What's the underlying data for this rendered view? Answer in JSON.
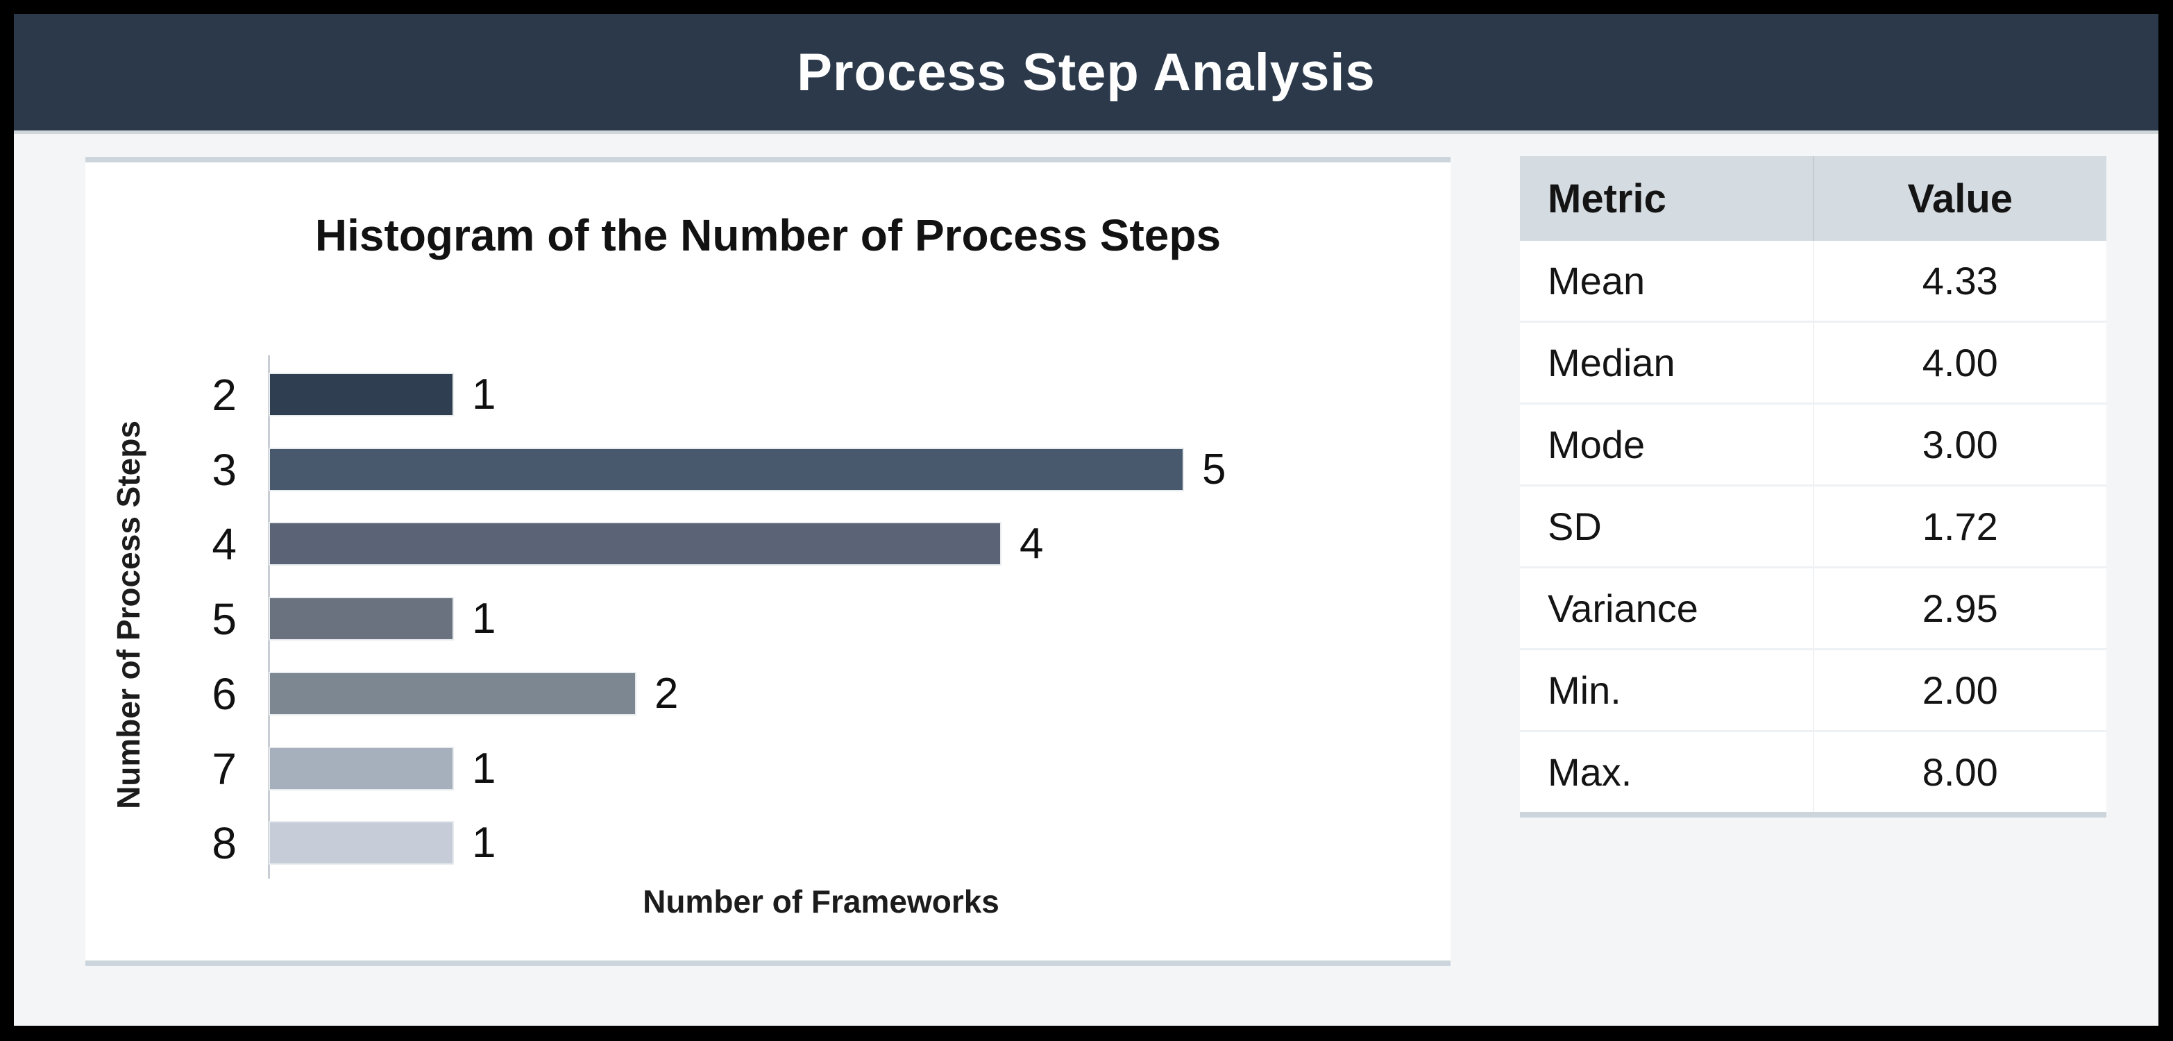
{
  "header": {
    "title": "Process Step Analysis"
  },
  "chart_data": {
    "type": "bar",
    "orientation": "horizontal",
    "title": "Histogram of the Number of Process Steps",
    "categories": [
      "2",
      "3",
      "4",
      "5",
      "6",
      "7",
      "8"
    ],
    "values": [
      1,
      5,
      4,
      1,
      2,
      1,
      1
    ],
    "xlabel": "Number of Frameworks",
    "ylabel": "Number of Process Steps",
    "xlim": [
      0,
      5
    ],
    "grid": false,
    "legend": false,
    "bar_colors": [
      "#2f3e51",
      "#48596e",
      "#5a6476",
      "#6a7280",
      "#7d8791",
      "#a6b0bd",
      "#c6cdd9"
    ]
  },
  "stats_table": {
    "columns": [
      "Metric",
      "Value"
    ],
    "rows": [
      {
        "metric": "Mean",
        "value": "4.33"
      },
      {
        "metric": "Median",
        "value": "4.00"
      },
      {
        "metric": "Mode",
        "value": "3.00"
      },
      {
        "metric": "SD",
        "value": "1.72"
      },
      {
        "metric": "Variance",
        "value": "2.95"
      },
      {
        "metric": "Min.",
        "value": "2.00"
      },
      {
        "metric": "Max.",
        "value": "8.00"
      }
    ]
  },
  "colors": {
    "header_bg": "#2b394b",
    "header_text": "#fefefe",
    "page_bg": "#f3f5f7",
    "card_bg": "#ffffff",
    "card_edge": "#ccd5dc",
    "table_header_bg": "#d4dbe1",
    "axis_line": "#c9ced4",
    "frame_border": "#000000"
  }
}
